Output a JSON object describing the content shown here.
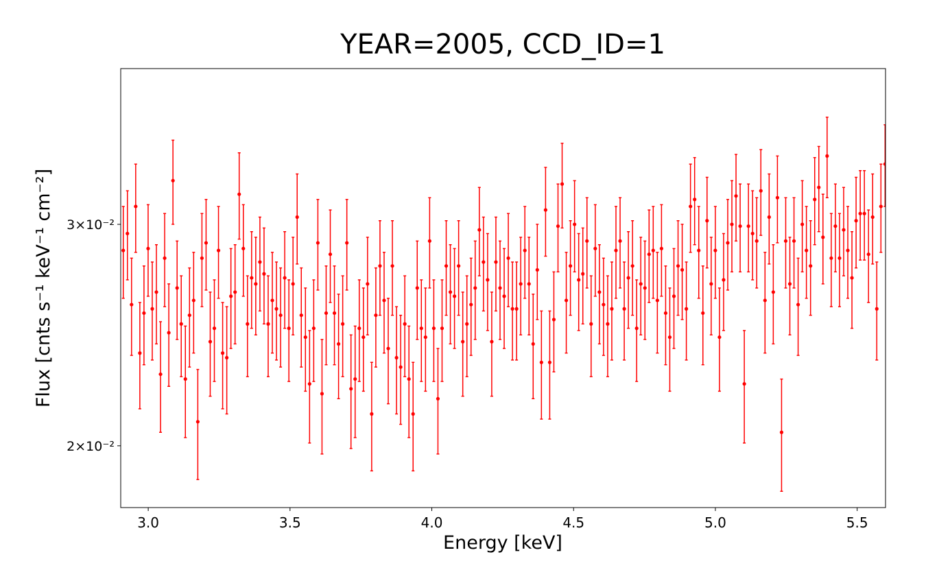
{
  "chart_data": {
    "type": "errorbar",
    "title": "YEAR=2005, CCD_ID=1",
    "x_label": "Energy [keV]",
    "y_label": "Flux [cnts s⁻¹ keV⁻¹ cm⁻²]",
    "color": "#ff0000",
    "log_y": true,
    "xlim": [
      2.903,
      5.6
    ],
    "ylim": [
      0.01786,
      0.0399
    ],
    "xticks": [
      {
        "value": 3,
        "label": "3.0"
      },
      3.5,
      {
        "value": 4,
        "label": "4.0"
      },
      4.5,
      {
        "value": 5,
        "label": "5.0"
      },
      5.5
    ],
    "yticks": [
      {
        "value": 0.02,
        "label": "2×10⁻²"
      },
      {
        "value": 0.03,
        "label": "3×10⁻²"
      }
    ],
    "x": [
      2.912,
      2.9266,
      2.9412,
      2.9558,
      2.9704,
      2.985,
      2.9996,
      3.0142,
      3.0288,
      3.0434,
      3.058,
      3.0726,
      3.0872,
      3.1018,
      3.1164,
      3.131,
      3.1456,
      3.1602,
      3.1748,
      3.1894,
      3.204,
      3.2186,
      3.2332,
      3.2478,
      3.2624,
      3.277,
      3.2916,
      3.3062,
      3.3208,
      3.3354,
      3.35,
      3.3646,
      3.3792,
      3.3938,
      3.4084,
      3.423,
      3.4376,
      3.4522,
      3.4668,
      3.4814,
      3.496,
      3.5106,
      3.5252,
      3.5398,
      3.5544,
      3.569,
      3.5836,
      3.5982,
      3.6128,
      3.6274,
      3.642,
      3.6566,
      3.6712,
      3.6858,
      3.7004,
      3.715,
      3.7296,
      3.7442,
      3.7588,
      3.7734,
      3.788,
      3.8026,
      3.8172,
      3.8318,
      3.8464,
      3.861,
      3.8756,
      3.8902,
      3.9048,
      3.9194,
      3.934,
      3.9486,
      3.9632,
      3.9778,
      3.9924,
      4.007,
      4.0216,
      4.0362,
      4.0508,
      4.0654,
      4.08,
      4.0946,
      4.1092,
      4.1238,
      4.1384,
      4.153,
      4.1676,
      4.1822,
      4.1968,
      4.2114,
      4.226,
      4.2406,
      4.2552,
      4.2698,
      4.2844,
      4.299,
      4.3136,
      4.3282,
      4.3428,
      4.3574,
      4.372,
      4.3866,
      4.4012,
      4.4158,
      4.4304,
      4.445,
      4.4596,
      4.4742,
      4.4888,
      4.5034,
      4.518,
      4.5326,
      4.5472,
      4.5618,
      4.5764,
      4.591,
      4.6056,
      4.6202,
      4.6348,
      4.6494,
      4.664,
      4.6786,
      4.6932,
      4.7078,
      4.7224,
      4.737,
      4.7516,
      4.7662,
      4.7808,
      4.7954,
      4.81,
      4.8246,
      4.8392,
      4.8538,
      4.8684,
      4.883,
      4.8976,
      4.9122,
      4.9268,
      4.9414,
      4.956,
      4.9706,
      4.9852,
      4.9998,
      5.0144,
      5.029,
      5.0436,
      5.0582,
      5.0728,
      5.0874,
      5.102,
      5.1166,
      5.1312,
      5.1458,
      5.1604,
      5.175,
      5.1896,
      5.2042,
      5.2188,
      5.2334,
      5.248,
      5.2626,
      5.2772,
      5.2918,
      5.3064,
      5.321,
      5.3356,
      5.3502,
      5.3648,
      5.3794,
      5.394,
      5.4086,
      5.4232,
      5.4378,
      5.4524,
      5.467,
      5.4816,
      5.4962,
      5.5108,
      5.5254,
      5.54,
      5.5546,
      5.5692,
      5.5838,
      5.5984
    ],
    "values": [
      0.0286,
      0.0295,
      0.0259,
      0.031,
      0.0237,
      0.0255,
      0.0287,
      0.0257,
      0.0265,
      0.0228,
      0.0282,
      0.0246,
      0.0325,
      0.0267,
      0.025,
      0.0226,
      0.0254,
      0.0261,
      0.0209,
      0.0282,
      0.029,
      0.0242,
      0.0248,
      0.0286,
      0.0237,
      0.0235,
      0.0263,
      0.0265,
      0.0317,
      0.0287,
      0.025,
      0.0272,
      0.0269,
      0.028,
      0.0274,
      0.025,
      0.0261,
      0.0257,
      0.0254,
      0.0272,
      0.0248,
      0.0269,
      0.0304,
      0.0254,
      0.0244,
      0.0224,
      0.0248,
      0.029,
      0.022,
      0.0255,
      0.0284,
      0.0255,
      0.0241,
      0.025,
      0.029,
      0.0222,
      0.0226,
      0.0248,
      0.0244,
      0.0269,
      0.0212,
      0.0254,
      0.0278,
      0.0261,
      0.0239,
      0.0278,
      0.0235,
      0.0231,
      0.025,
      0.0226,
      0.0212,
      0.0267,
      0.0248,
      0.0244,
      0.0291,
      0.0248,
      0.0218,
      0.0248,
      0.0278,
      0.0265,
      0.0263,
      0.0278,
      0.0242,
      0.025,
      0.0259,
      0.0267,
      0.0297,
      0.028,
      0.0271,
      0.0242,
      0.028,
      0.0267,
      0.0263,
      0.0282,
      0.0257,
      0.0257,
      0.0269,
      0.0286,
      0.0269,
      0.0241,
      0.0276,
      0.0233,
      0.0308,
      0.0233,
      0.0252,
      0.0299,
      0.0323,
      0.0261,
      0.0278,
      0.03,
      0.0271,
      0.0274,
      0.0291,
      0.025,
      0.0287,
      0.0265,
      0.0259,
      0.025,
      0.0257,
      0.0286,
      0.0291,
      0.0257,
      0.0272,
      0.0278,
      0.0248,
      0.0269,
      0.0267,
      0.0284,
      0.0286,
      0.0261,
      0.0287,
      0.0255,
      0.0244,
      0.0263,
      0.0278,
      0.0276,
      0.0257,
      0.031,
      0.0314,
      0.0286,
      0.0255,
      0.0302,
      0.0269,
      0.0286,
      0.0244,
      0.0271,
      0.029,
      0.03,
      0.0316,
      0.0299,
      0.0224,
      0.0299,
      0.0295,
      0.0291,
      0.0319,
      0.0261,
      0.0304,
      0.0265,
      0.0315,
      0.0205,
      0.0291,
      0.0269,
      0.0291,
      0.0259,
      0.03,
      0.0286,
      0.0278,
      0.0314,
      0.0321,
      0.0293,
      0.034,
      0.0282,
      0.0299,
      0.0282,
      0.0297,
      0.0286,
      0.0272,
      0.0302,
      0.0306,
      0.0306,
      0.0284,
      0.0304,
      0.0257,
      0.031,
      0.0335
    ],
    "errors": [
      0.0024,
      0.0024,
      0.0023,
      0.0025,
      0.0023,
      0.0023,
      0.0024,
      0.0023,
      0.0024,
      0.0023,
      0.0024,
      0.0023,
      0.0025,
      0.0024,
      0.0023,
      0.0023,
      0.0023,
      0.0024,
      0.0021,
      0.0024,
      0.0024,
      0.0023,
      0.0023,
      0.0024,
      0.0023,
      0.0023,
      0.0024,
      0.0024,
      0.0025,
      0.0024,
      0.0023,
      0.0024,
      0.0024,
      0.0024,
      0.0024,
      0.0023,
      0.0024,
      0.0023,
      0.0023,
      0.0024,
      0.0023,
      0.0024,
      0.0025,
      0.0023,
      0.0023,
      0.0023,
      0.0023,
      0.0024,
      0.0023,
      0.0023,
      0.0024,
      0.0023,
      0.0023,
      0.0023,
      0.0024,
      0.0023,
      0.0023,
      0.0023,
      0.0023,
      0.0024,
      0.0021,
      0.0023,
      0.0024,
      0.0024,
      0.0023,
      0.0024,
      0.0023,
      0.0023,
      0.0023,
      0.0023,
      0.0021,
      0.0024,
      0.0023,
      0.0023,
      0.0024,
      0.0023,
      0.0021,
      0.0023,
      0.0024,
      0.0024,
      0.0024,
      0.0024,
      0.0023,
      0.0023,
      0.0023,
      0.0024,
      0.0024,
      0.0024,
      0.0024,
      0.0023,
      0.0024,
      0.0024,
      0.0024,
      0.0024,
      0.0023,
      0.0023,
      0.0024,
      0.0024,
      0.0024,
      0.0023,
      0.0024,
      0.0023,
      0.0025,
      0.0023,
      0.0023,
      0.0024,
      0.0025,
      0.0024,
      0.0024,
      0.0025,
      0.0024,
      0.0024,
      0.0024,
      0.0023,
      0.0024,
      0.0024,
      0.0023,
      0.0023,
      0.0023,
      0.0024,
      0.0024,
      0.0023,
      0.0024,
      0.0024,
      0.0023,
      0.0024,
      0.0024,
      0.0024,
      0.0024,
      0.0024,
      0.0024,
      0.0023,
      0.0023,
      0.0024,
      0.0024,
      0.0024,
      0.0023,
      0.0025,
      0.0025,
      0.0024,
      0.0023,
      0.0025,
      0.0024,
      0.0024,
      0.0023,
      0.0024,
      0.0024,
      0.0025,
      0.0025,
      0.0024,
      0.0023,
      0.0024,
      0.0024,
      0.0024,
      0.0025,
      0.0024,
      0.0025,
      0.0024,
      0.0025,
      0.0021,
      0.0024,
      0.0024,
      0.0024,
      0.0023,
      0.0025,
      0.0024,
      0.0024,
      0.0025,
      0.0025,
      0.0024,
      0.0025,
      0.0024,
      0.0024,
      0.0024,
      0.0024,
      0.0024,
      0.0024,
      0.0025,
      0.0025,
      0.0025,
      0.0024,
      0.0025,
      0.0023,
      0.0025,
      0.0025
    ]
  }
}
